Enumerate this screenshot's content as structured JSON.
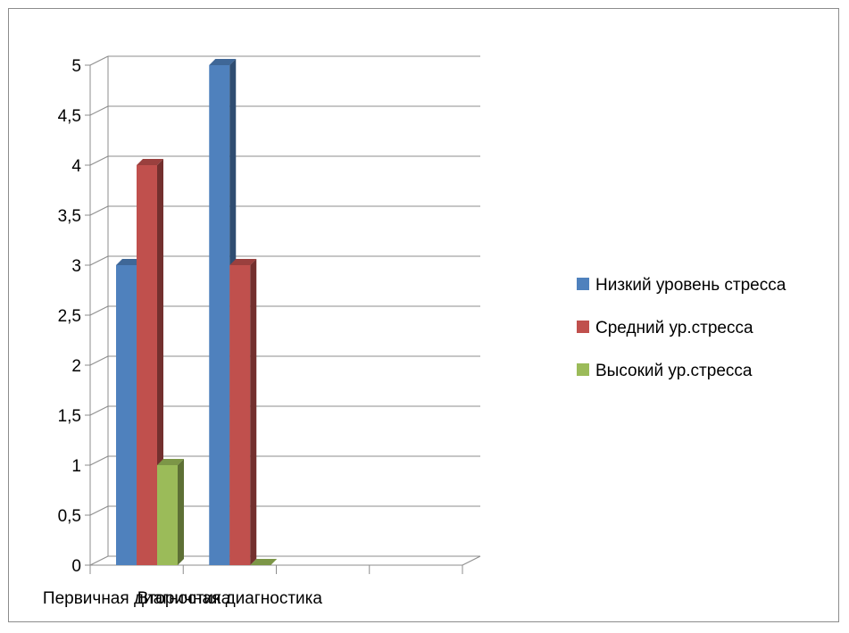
{
  "chart_data": {
    "type": "bar",
    "style": "3d-clustered-column",
    "categories": [
      "Первичная диагностика",
      "Вторичная диагностика"
    ],
    "series": [
      {
        "name": "Низкий уровень стресса",
        "values": [
          3,
          5
        ],
        "color": "#4f81bd"
      },
      {
        "name": "Средний ур.стресса",
        "values": [
          4,
          3
        ],
        "color": "#c0504d"
      },
      {
        "name": "Высокий ур.стресса",
        "values": [
          1,
          0
        ],
        "color": "#9bbb59"
      }
    ],
    "ylim": [
      0,
      5
    ],
    "ytick_labels": [
      "0",
      "0,5",
      "1",
      "1,5",
      "2",
      "2,5",
      "3",
      "3,5",
      "4",
      "4,5",
      "5"
    ],
    "grid": true,
    "legend_position": "right",
    "title": "",
    "xlabel": "",
    "ylabel": ""
  }
}
